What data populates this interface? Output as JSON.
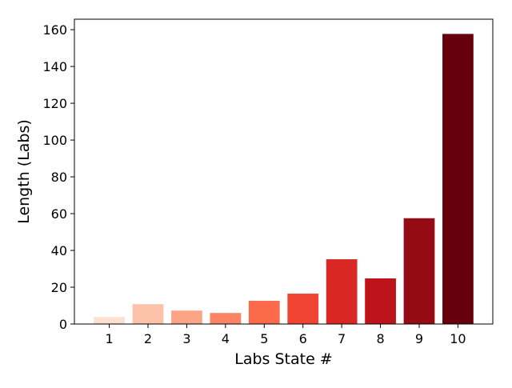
{
  "chart_data": {
    "type": "bar",
    "title": "",
    "xlabel": "Labs State #",
    "ylabel": "Length (Labs)",
    "categories": [
      "1",
      "2",
      "3",
      "4",
      "5",
      "6",
      "7",
      "8",
      "9",
      "10"
    ],
    "values": [
      3.8,
      10.8,
      7.3,
      6.0,
      12.6,
      16.5,
      35.2,
      24.8,
      57.5,
      157.7
    ],
    "colors": [
      "#fee0d2",
      "#fcc3aa",
      "#fca486",
      "#fc8464",
      "#fb6a4a",
      "#f14432",
      "#d92723",
      "#bc141a",
      "#940b13",
      "#67000d"
    ],
    "ylim": [
      0,
      165.7
    ],
    "yticks": [
      0,
      20,
      40,
      60,
      80,
      100,
      120,
      140,
      160
    ],
    "grid": false,
    "legend": "none"
  }
}
